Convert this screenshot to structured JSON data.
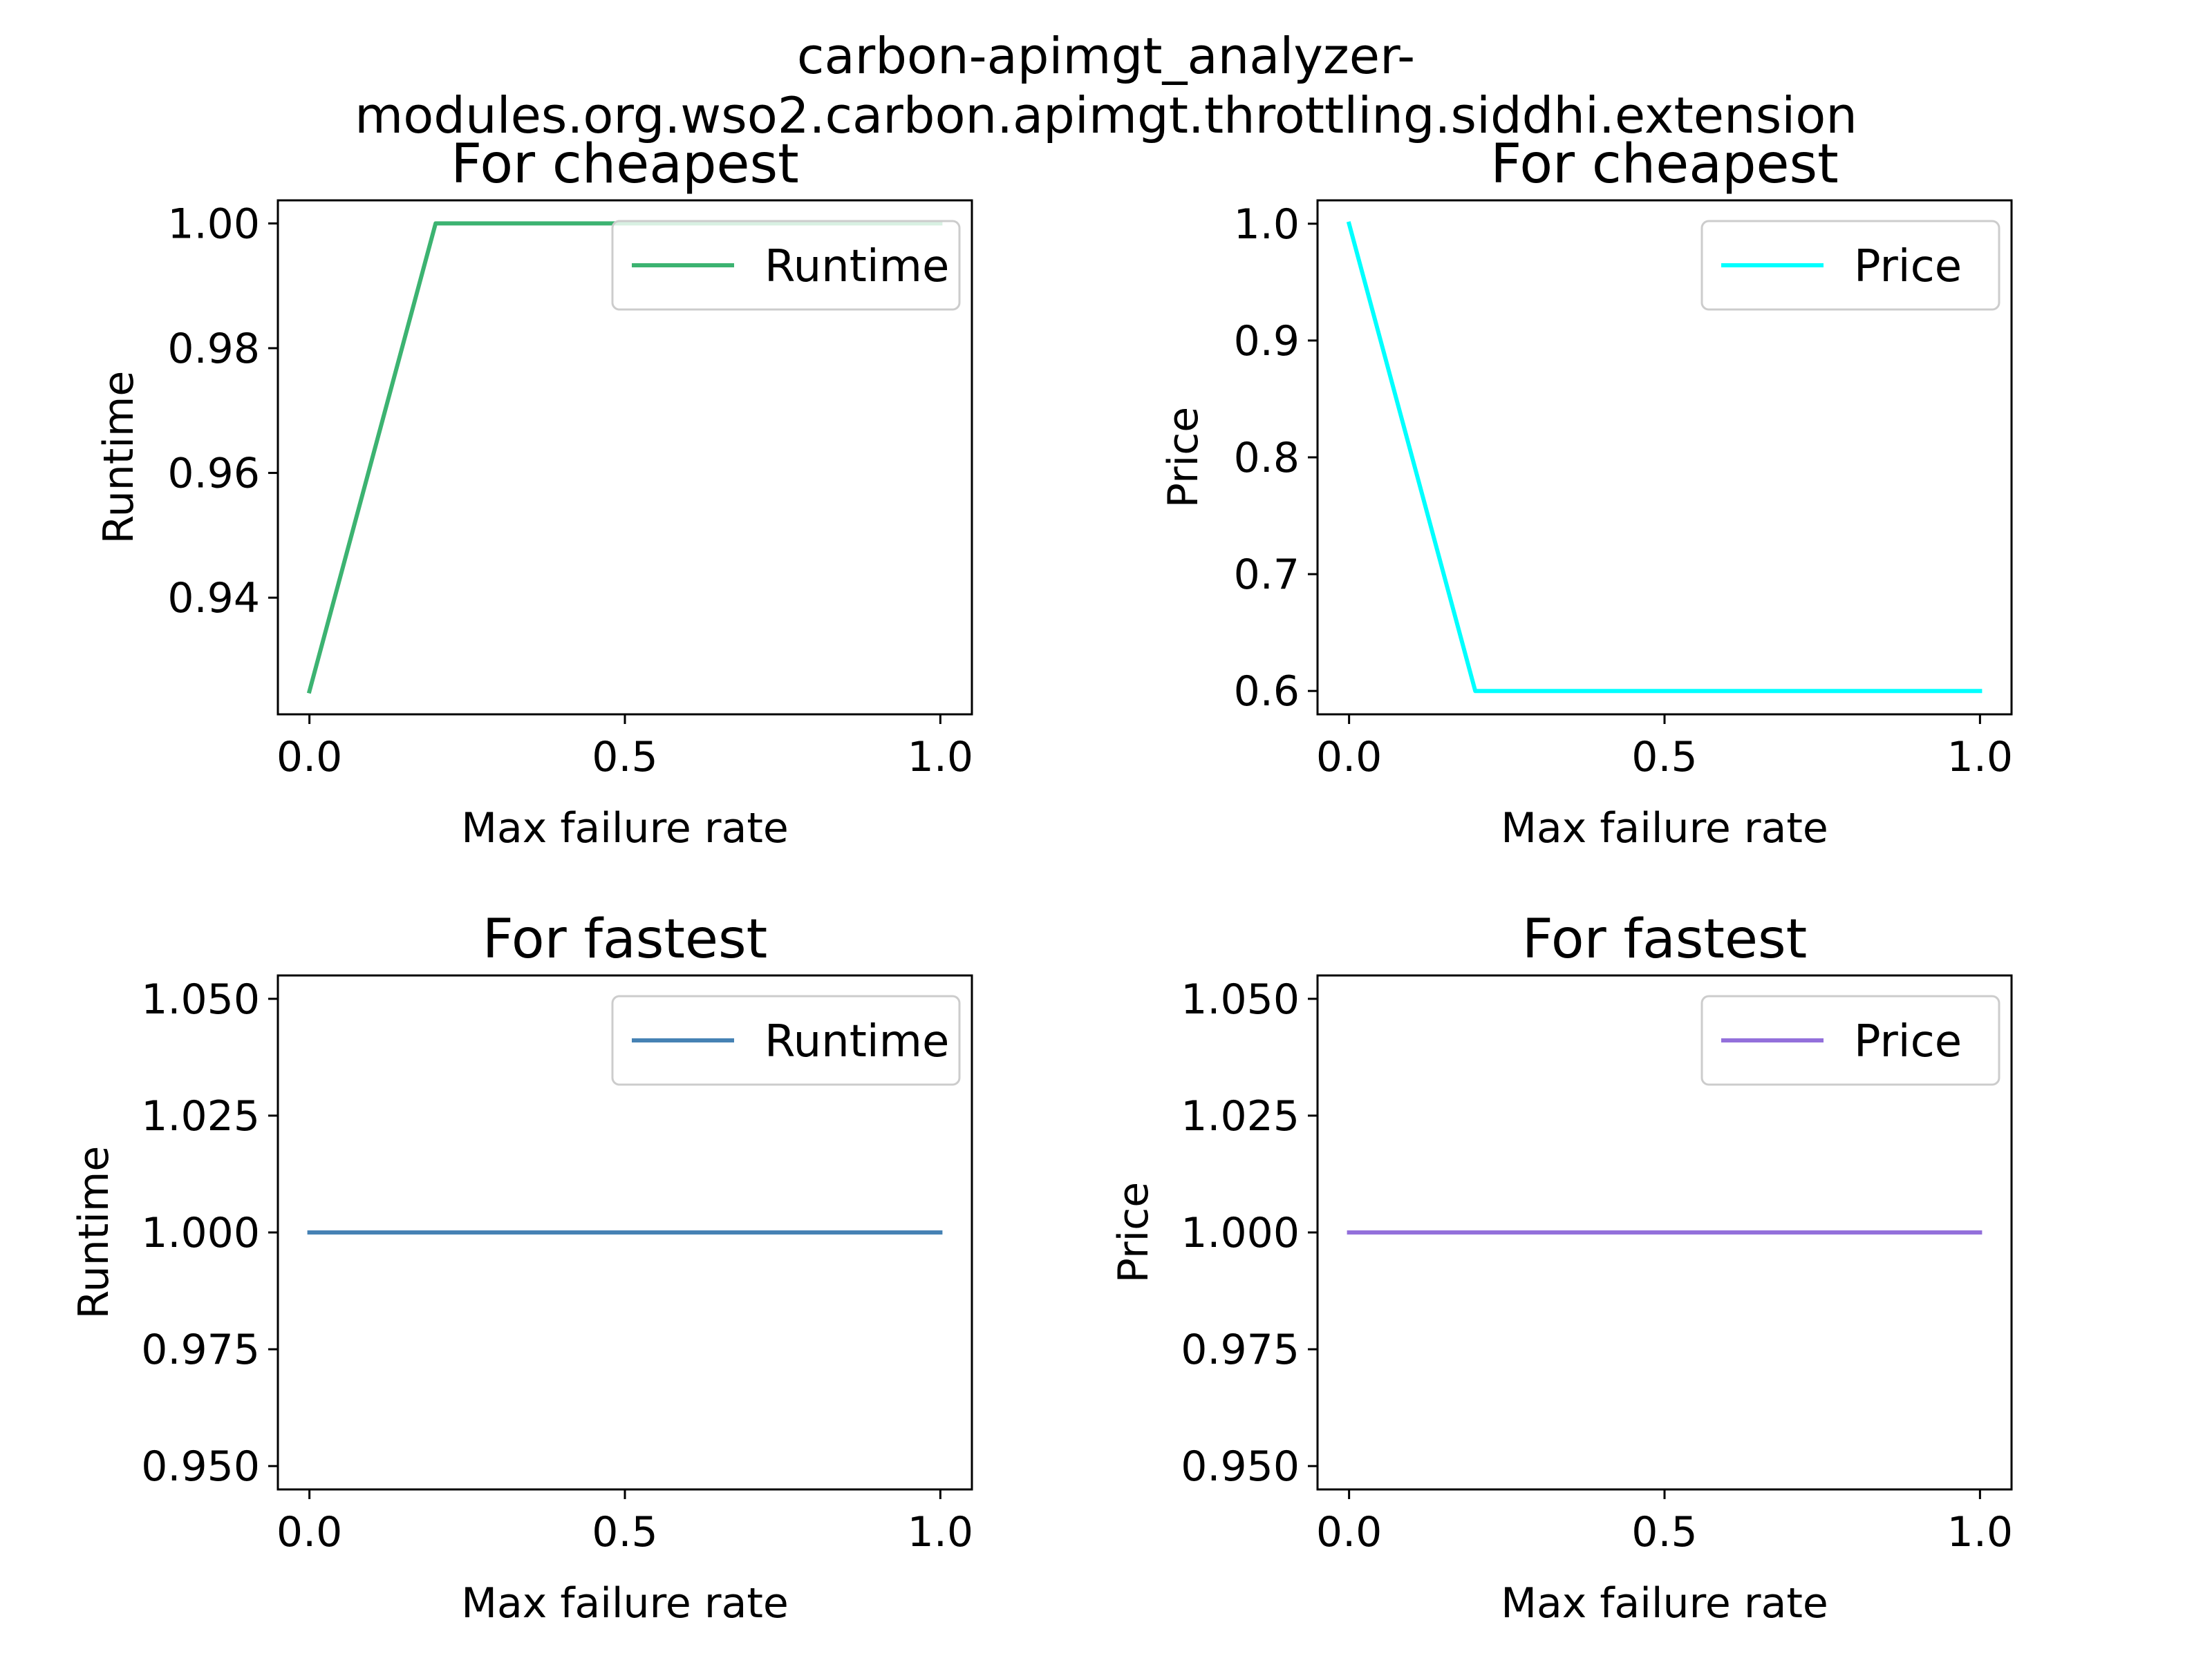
{
  "figure": {
    "suptitle_lines": [
      "carbon-apimgt_analyzer-",
      "modules.org.wso2.carbon.apimgt.throttling.siddhi.extension"
    ]
  },
  "chart_data": [
    {
      "type": "line",
      "title": "For cheapest",
      "xlabel": "Max failure rate",
      "ylabel": "Runtime",
      "xlim": [
        -0.05,
        1.05
      ],
      "ylim": [
        0.9213,
        1.0037
      ],
      "xticks": [
        0.0,
        0.5,
        1.0
      ],
      "xtick_labels": [
        "0.0",
        "0.5",
        "1.0"
      ],
      "yticks": [
        0.94,
        0.96,
        0.98,
        1.0
      ],
      "ytick_labels": [
        "0.94",
        "0.96",
        "0.98",
        "1.00"
      ],
      "legend": "upper right",
      "series": [
        {
          "name": "Runtime",
          "color": "#3cb371",
          "x": [
            0.0,
            0.2,
            0.4,
            0.6,
            0.8,
            1.0
          ],
          "y": [
            0.925,
            1.0,
            1.0,
            1.0,
            1.0,
            1.0
          ]
        }
      ]
    },
    {
      "type": "line",
      "title": "For cheapest",
      "xlabel": "Max failure rate",
      "ylabel": "Price",
      "xlim": [
        -0.05,
        1.05
      ],
      "ylim": [
        0.58,
        1.02
      ],
      "xticks": [
        0.0,
        0.5,
        1.0
      ],
      "xtick_labels": [
        "0.0",
        "0.5",
        "1.0"
      ],
      "yticks": [
        0.6,
        0.7,
        0.8,
        0.9,
        1.0
      ],
      "ytick_labels": [
        "0.6",
        "0.7",
        "0.8",
        "0.9",
        "1.0"
      ],
      "legend": "upper right",
      "series": [
        {
          "name": "Price",
          "color": "#00ffff",
          "x": [
            0.0,
            0.2,
            0.4,
            0.6,
            0.8,
            1.0
          ],
          "y": [
            1.0,
            0.6,
            0.6,
            0.6,
            0.6,
            0.6
          ]
        }
      ]
    },
    {
      "type": "line",
      "title": "For fastest",
      "xlabel": "Max failure rate",
      "ylabel": "Runtime",
      "xlim": [
        -0.05,
        1.05
      ],
      "ylim": [
        0.945,
        1.055
      ],
      "xticks": [
        0.0,
        0.5,
        1.0
      ],
      "xtick_labels": [
        "0.0",
        "0.5",
        "1.0"
      ],
      "yticks": [
        0.95,
        0.975,
        1.0,
        1.025,
        1.05
      ],
      "ytick_labels": [
        "0.950",
        "0.975",
        "1.000",
        "1.025",
        "1.050"
      ],
      "legend": "upper right",
      "series": [
        {
          "name": "Runtime",
          "color": "#4682b4",
          "x": [
            0.0,
            0.2,
            0.4,
            0.6,
            0.8,
            1.0
          ],
          "y": [
            1.0,
            1.0,
            1.0,
            1.0,
            1.0,
            1.0
          ]
        }
      ]
    },
    {
      "type": "line",
      "title": "For fastest",
      "xlabel": "Max failure rate",
      "ylabel": "Price",
      "xlim": [
        -0.05,
        1.05
      ],
      "ylim": [
        0.945,
        1.055
      ],
      "xticks": [
        0.0,
        0.5,
        1.0
      ],
      "xtick_labels": [
        "0.0",
        "0.5",
        "1.0"
      ],
      "yticks": [
        0.95,
        0.975,
        1.0,
        1.025,
        1.05
      ],
      "ytick_labels": [
        "0.950",
        "0.975",
        "1.000",
        "1.025",
        "1.050"
      ],
      "legend": "upper right",
      "series": [
        {
          "name": "Price",
          "color": "#9370db",
          "x": [
            0.0,
            0.2,
            0.4,
            0.6,
            0.8,
            1.0
          ],
          "y": [
            1.0,
            1.0,
            1.0,
            1.0,
            1.0,
            1.0
          ]
        }
      ]
    }
  ]
}
